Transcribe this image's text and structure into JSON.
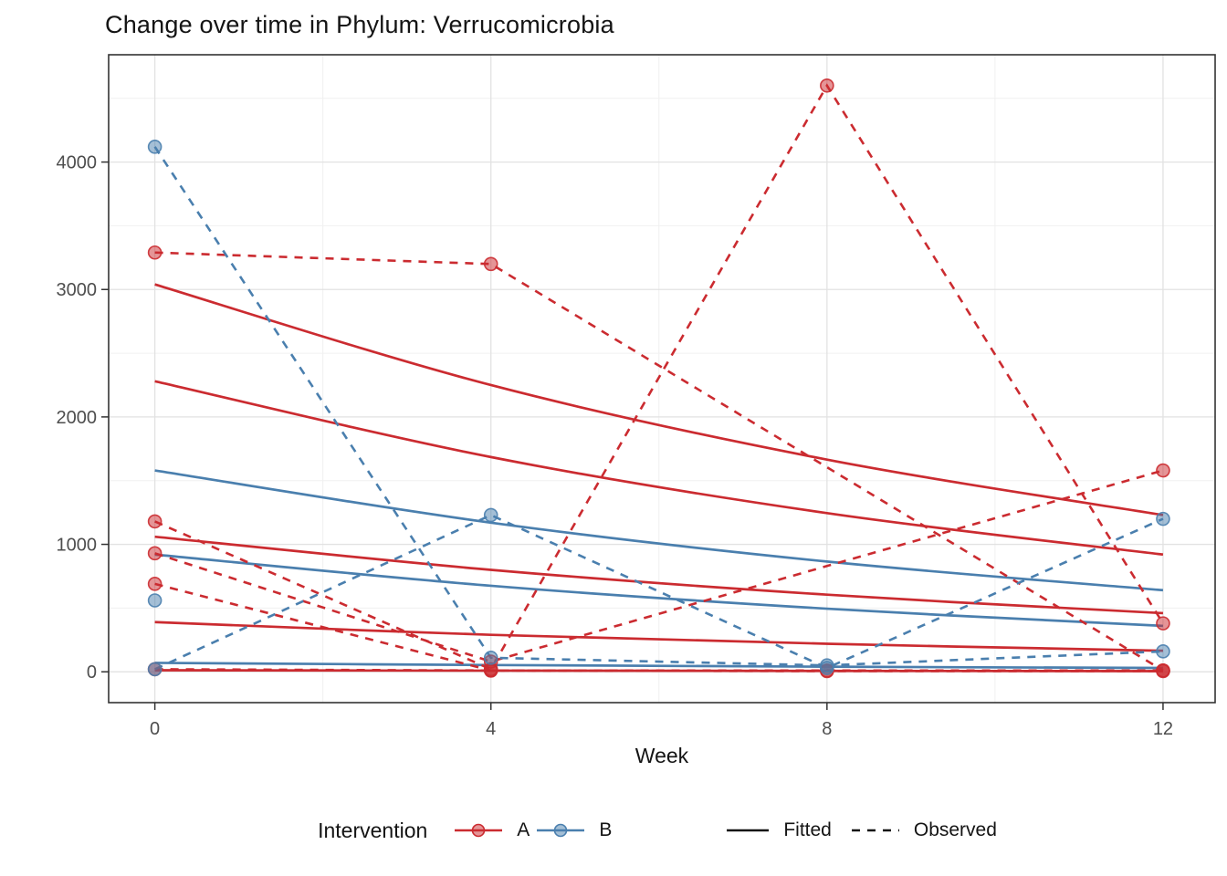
{
  "chart_data": {
    "type": "line",
    "title": "Change over time in Phylum: Verrucomicrobia",
    "xlabel": "Week",
    "ylabel": "",
    "x": [
      0,
      4,
      8,
      12
    ],
    "xticks": [
      0,
      4,
      8,
      12
    ],
    "x_minor": [
      2,
      6,
      10
    ],
    "yticks": [
      0,
      1000,
      2000,
      3000,
      4000
    ],
    "y_minor": [
      500,
      1500,
      2500,
      3500,
      4500
    ],
    "xlim": [
      -0.55,
      12.62
    ],
    "ylim": [
      -242,
      4842
    ],
    "grid": true,
    "legend_position": "bottom",
    "colors": {
      "A": "#CB2B30",
      "B": "#4A7FAE"
    },
    "series": [
      {
        "name": "A-subj1-fitted",
        "group": "A",
        "kind": "fitted",
        "values": [
          3040,
          2250,
          1665,
          1230
        ]
      },
      {
        "name": "A-subj2-fitted",
        "group": "A",
        "kind": "fitted",
        "values": [
          2280,
          1685,
          1245,
          920
        ]
      },
      {
        "name": "A-subj3-fitted",
        "group": "A",
        "kind": "fitted",
        "values": [
          1060,
          800,
          605,
          460
        ]
      },
      {
        "name": "A-subj4-fitted",
        "group": "A",
        "kind": "fitted",
        "values": [
          390,
          290,
          220,
          165
        ]
      },
      {
        "name": "A-subj5-fitted",
        "group": "A",
        "kind": "fitted",
        "values": [
          12,
          9,
          7,
          5
        ]
      },
      {
        "name": "B-subj1-fitted",
        "group": "B",
        "kind": "fitted",
        "values": [
          1580,
          1170,
          865,
          640
        ]
      },
      {
        "name": "B-subj2-fitted",
        "group": "B",
        "kind": "fitted",
        "values": [
          920,
          675,
          495,
          360
        ]
      },
      {
        "name": "B-subj3-fitted",
        "group": "B",
        "kind": "fitted",
        "values": [
          70,
          53,
          40,
          30
        ]
      },
      {
        "name": "A-subj1-observed",
        "group": "A",
        "kind": "observed",
        "values": [
          3290,
          3200,
          null,
          10
        ]
      },
      {
        "name": "A-subj2-observed",
        "group": "A",
        "kind": "observed",
        "values": [
          1180,
          20,
          4600,
          380
        ]
      },
      {
        "name": "A-subj3-observed",
        "group": "A",
        "kind": "observed",
        "values": [
          930,
          80,
          null,
          1580
        ]
      },
      {
        "name": "A-subj4-observed",
        "group": "A",
        "kind": "observed",
        "values": [
          690,
          10,
          10,
          10
        ]
      },
      {
        "name": "A-subj5-observed",
        "group": "A",
        "kind": "observed",
        "values": [
          20,
          10,
          5,
          5
        ]
      },
      {
        "name": "B-subj1-observed",
        "group": "B",
        "kind": "observed",
        "values": [
          4120,
          110,
          50,
          160
        ]
      },
      {
        "name": "B-subj2-observed",
        "group": "B",
        "kind": "observed",
        "values": [
          20,
          1230,
          30,
          1200
        ]
      },
      {
        "name": "B-subj3-observed",
        "group": "B",
        "kind": "observed",
        "values": [
          560,
          null,
          null,
          null
        ]
      }
    ]
  },
  "legend": {
    "title": "Intervention",
    "groups": [
      {
        "label": "A",
        "color": "#CB2B30"
      },
      {
        "label": "B",
        "color": "#4A7FAE"
      }
    ],
    "linetypes": [
      {
        "label": "Fitted",
        "style": "solid"
      },
      {
        "label": "Observed",
        "style": "dashed"
      }
    ]
  },
  "style_colors": {
    "grid_major": "#E2E2E2",
    "grid_minor": "#F0F0F0",
    "panel_border": "#333333",
    "tick_label": "#4D4D4D",
    "text": "#141414"
  }
}
